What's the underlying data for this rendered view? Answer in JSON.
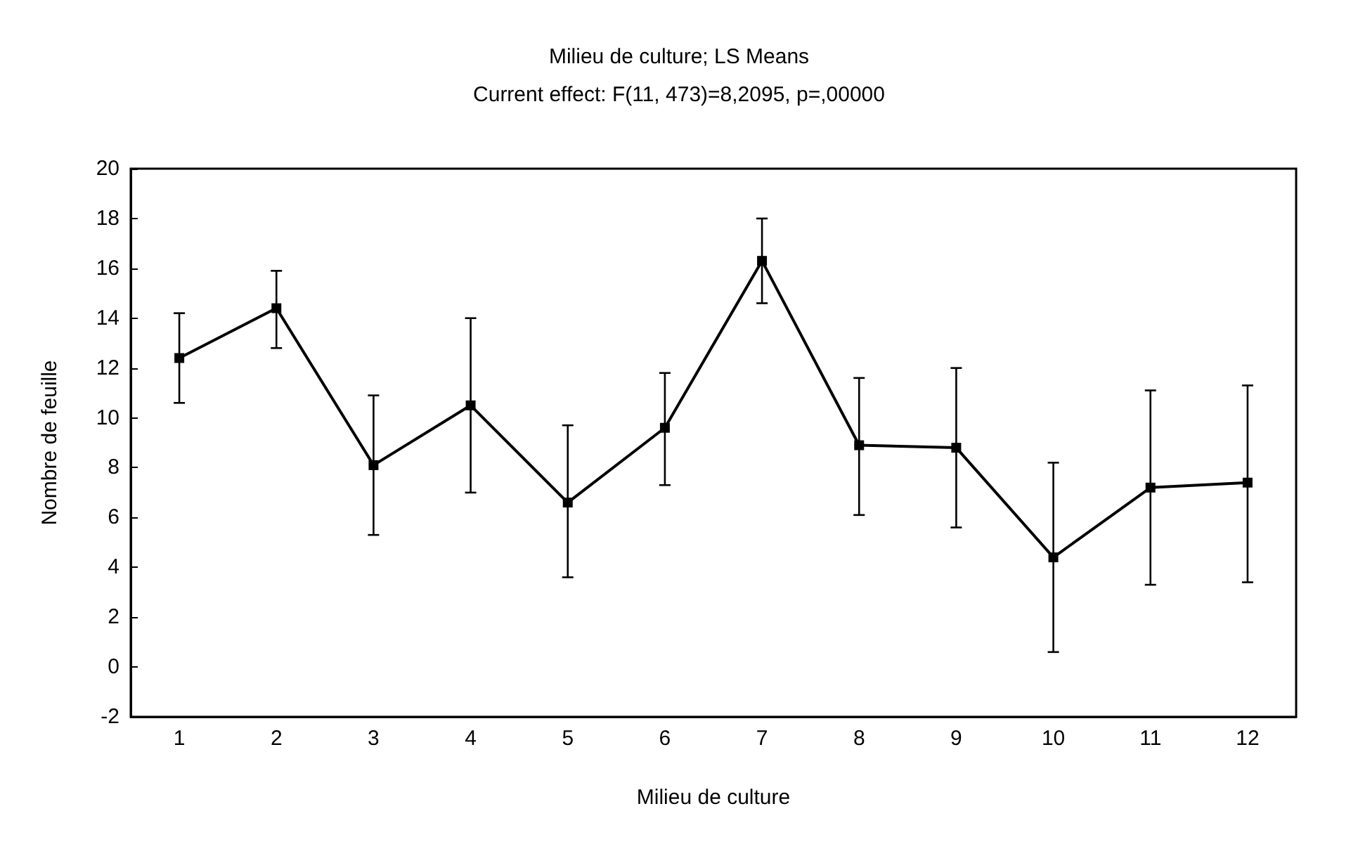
{
  "chart_data": {
    "type": "line",
    "title": "Milieu de culture; LS Means",
    "subtitle": "Current effect: F(11, 473)=8,2095, p=,00000",
    "xlabel": "Milieu de culture",
    "ylabel": "Nombre de feuille",
    "categories": [
      "1",
      "2",
      "3",
      "4",
      "5",
      "6",
      "7",
      "8",
      "9",
      "10",
      "11",
      "12"
    ],
    "series": [
      {
        "color": "#000000",
        "values": [
          12.4,
          14.4,
          8.1,
          10.5,
          6.6,
          9.6,
          16.3,
          8.9,
          8.8,
          4.4,
          7.2,
          7.4
        ],
        "errors": [
          [
            10.6,
            14.2
          ],
          [
            12.8,
            15.9
          ],
          [
            5.3,
            10.9
          ],
          [
            7.0,
            14.0
          ],
          [
            3.6,
            9.7
          ],
          [
            7.3,
            11.8
          ],
          [
            14.6,
            18.0
          ],
          [
            6.1,
            11.6
          ],
          [
            5.6,
            12.0
          ],
          [
            0.6,
            8.2
          ],
          [
            3.3,
            11.1
          ],
          [
            3.4,
            11.3
          ]
        ]
      }
    ],
    "ylim": [
      -2,
      20
    ],
    "yticks": [
      -2,
      0,
      2,
      4,
      6,
      8,
      10,
      12,
      14,
      16,
      18,
      20
    ],
    "grid": false,
    "marker": "square",
    "line_style": "solid"
  }
}
